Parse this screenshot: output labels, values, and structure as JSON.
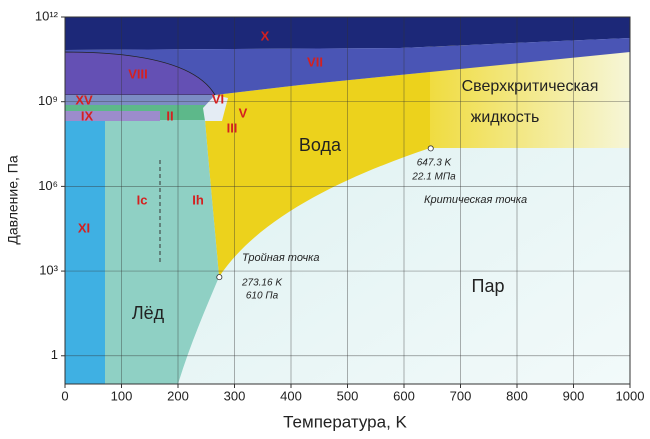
{
  "chart_data": {
    "type": "phase",
    "xlabel": "Температура, K",
    "ylabel": "Давление, Па",
    "xlim": [
      0,
      1000
    ],
    "ylim": [
      0.1,
      1000000000000
    ],
    "log_y": true,
    "grid": true,
    "xticks": [
      0,
      100,
      200,
      300,
      400,
      500,
      600,
      700,
      800,
      900,
      1000
    ],
    "yticks": [
      1,
      {
        "value": 1000,
        "label": "10³"
      },
      {
        "value": 1000000,
        "label": "10⁶"
      },
      {
        "value": 1000000000,
        "label": "10⁹"
      },
      {
        "value": 1000000000000,
        "label": "10¹²"
      }
    ],
    "region_labels": [
      "X",
      "VII",
      "VIII",
      "XV",
      "IX",
      "II",
      "VI",
      "V",
      "III",
      "Вода",
      "Сверхкритическая",
      "жидкость",
      "Ic",
      "Ih",
      "XI",
      "Лёд",
      "Пар"
    ],
    "points": [
      {
        "name": "Тройная точка",
        "x": 273.16,
        "y": 610,
        "labels": [
          "273.16 K",
          "610 Па"
        ]
      },
      {
        "name": "Критическая точка",
        "x": 647.3,
        "y": 22100000,
        "labels": [
          "647.3 K",
          "22.1 МПа"
        ]
      }
    ]
  }
}
